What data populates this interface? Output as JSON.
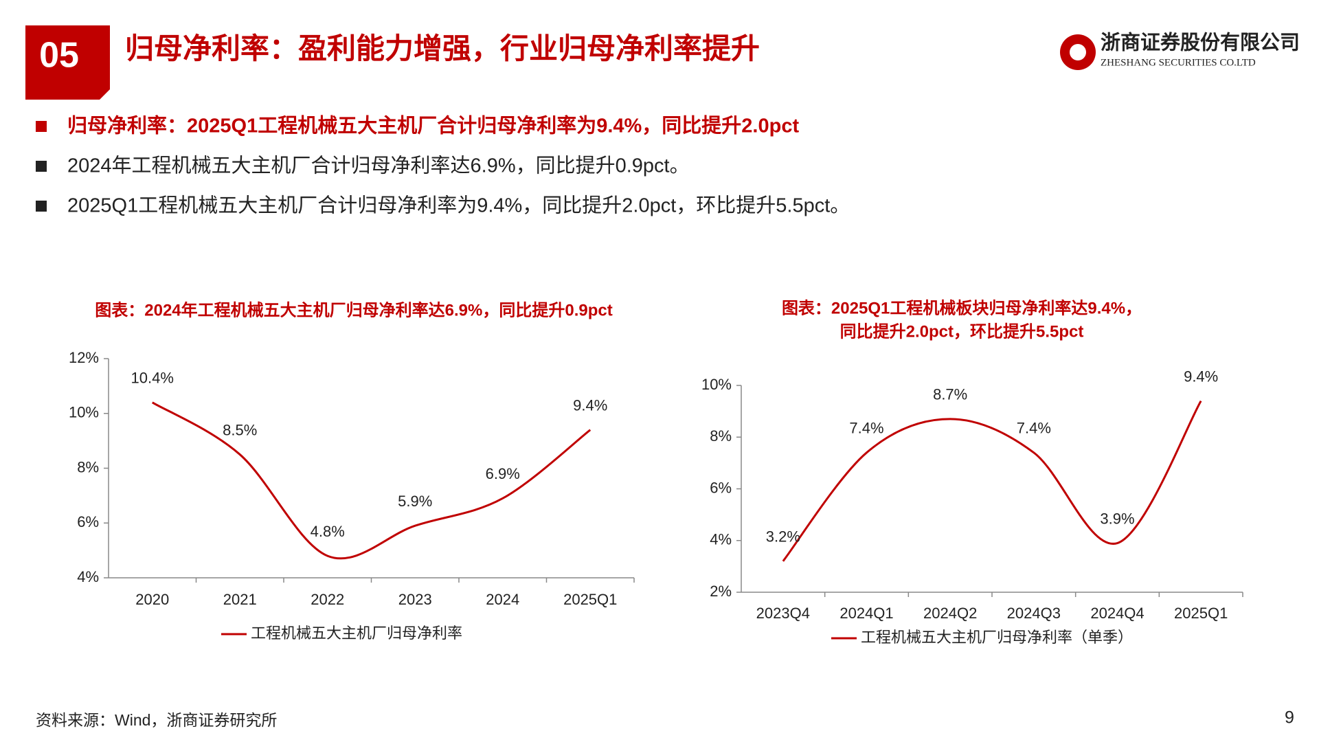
{
  "header": {
    "number": "05",
    "title": "归母净利率：盈利能力增强，行业归母净利率提升"
  },
  "logo": {
    "name": "浙商证券股份有限公司",
    "name_en": "ZHESHANG SECURITIES CO.LTD"
  },
  "bullets": [
    "归母净利率：2025Q1工程机械五大主机厂合计归母净利率为9.4%，同比提升2.0pct",
    "2024年工程机械五大主机厂合计归母净利率达6.9%，同比提升0.9pct。",
    "2025Q1工程机械五大主机厂合计归母净利率为9.4%，同比提升2.0pct，环比提升5.5pct。"
  ],
  "chart_data": [
    {
      "type": "line",
      "title": "图表：2024年工程机械五大主机厂归母净利率达6.9%，同比提升0.9pct",
      "categories": [
        "2020",
        "2021",
        "2022",
        "2023",
        "2024",
        "2025Q1"
      ],
      "series": [
        {
          "name": "工程机械五大主机厂归母净利率",
          "color": "#c00000",
          "values": [
            10.4,
            8.5,
            4.8,
            5.9,
            6.9,
            9.4
          ],
          "value_labels": [
            "10.4%",
            "8.5%",
            "4.8%",
            "5.9%",
            "6.9%",
            "9.4%"
          ]
        }
      ],
      "ylim": [
        4,
        12
      ],
      "yticks": [
        {
          "value": 4,
          "label": "4%"
        },
        {
          "value": 6,
          "label": "6%"
        },
        {
          "value": 8,
          "label": "8%"
        },
        {
          "value": 10,
          "label": "10%"
        },
        {
          "value": 12,
          "label": "12%"
        }
      ],
      "smooth": true,
      "grid": false,
      "legend": "bottom"
    },
    {
      "type": "line",
      "title": [
        "图表：2025Q1工程机械板块归母净利率达9.4%，",
        "同比提升2.0pct，环比提升5.5pct"
      ],
      "categories": [
        "2023Q4",
        "2024Q1",
        "2024Q2",
        "2024Q3",
        "2024Q4",
        "2025Q1"
      ],
      "series": [
        {
          "name": "工程机械五大主机厂归母净利率（单季）",
          "color": "#c00000",
          "values": [
            3.2,
            7.4,
            8.7,
            7.4,
            3.9,
            9.4
          ],
          "value_labels": [
            "3.2%",
            "7.4%",
            "8.7%",
            "7.4%",
            "3.9%",
            "9.4%"
          ]
        }
      ],
      "ylim": [
        2,
        10
      ],
      "yticks": [
        {
          "value": 2,
          "label": "2%"
        },
        {
          "value": 4,
          "label": "4%"
        },
        {
          "value": 6,
          "label": "6%"
        },
        {
          "value": 8,
          "label": "8%"
        },
        {
          "value": 10,
          "label": "10%"
        }
      ],
      "smooth": true,
      "grid": false,
      "legend": "bottom"
    }
  ],
  "source": "资料来源：Wind，浙商证券研究所",
  "page_number": "9"
}
